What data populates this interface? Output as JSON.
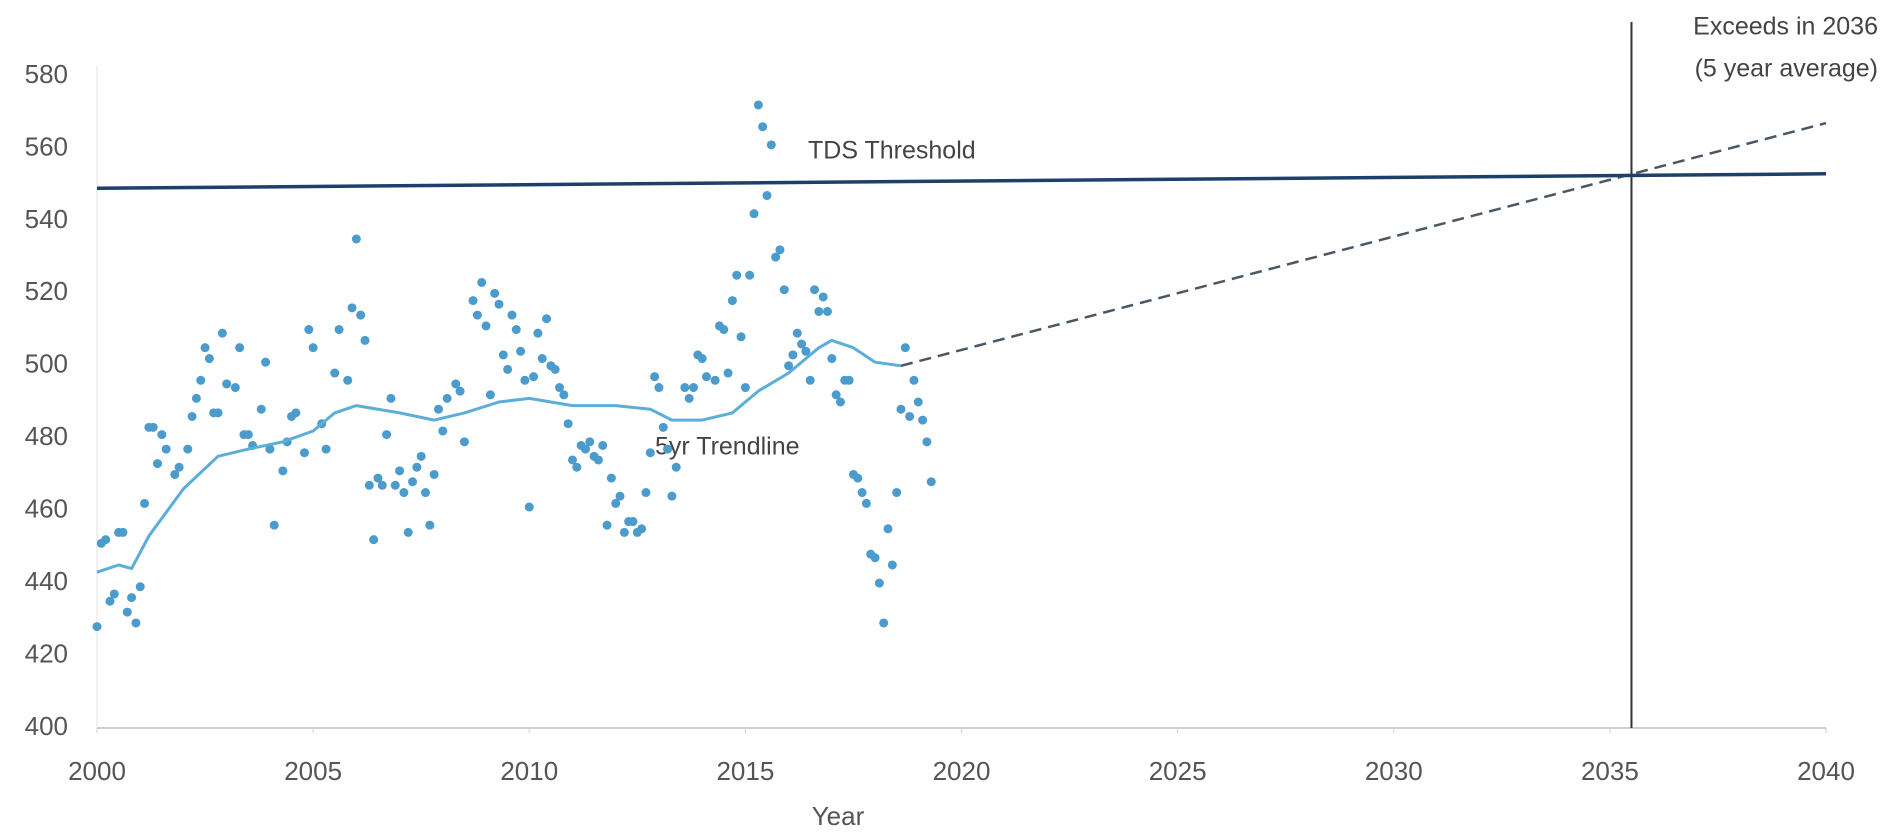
{
  "chart_data": {
    "type": "scatter",
    "x_label": "Year",
    "xlim": [
      2000,
      2040
    ],
    "xticks": [
      2000,
      2005,
      2010,
      2015,
      2020,
      2025,
      2030,
      2035,
      2040
    ],
    "ylim": [
      400,
      580
    ],
    "yticks": [
      400,
      420,
      440,
      460,
      480,
      500,
      520,
      540,
      560,
      580
    ],
    "grid": false,
    "vline_x": 2035.5,
    "annotations": [
      "TDS Threshold",
      "5yr Trendline",
      "Exceeds in 2036",
      "(5 year average)"
    ],
    "series": [
      {
        "type": "scatter",
        "color": "#4b9bcc",
        "x": [
          2000.0,
          2000.1,
          2000.2,
          2000.3,
          2000.4,
          2000.5,
          2000.6,
          2000.7,
          2000.8,
          2000.9,
          2001.0,
          2001.1,
          2001.2,
          2001.3,
          2001.4,
          2001.5,
          2001.6,
          2001.8,
          2001.9,
          2002.1,
          2002.2,
          2002.3,
          2002.4,
          2002.5,
          2002.6,
          2002.7,
          2002.8,
          2002.9,
          2003.0,
          2003.2,
          2003.3,
          2003.4,
          2003.5,
          2003.6,
          2003.8,
          2003.9,
          2004.0,
          2004.1,
          2004.3,
          2004.4,
          2004.5,
          2004.6,
          2004.8,
          2004.9,
          2005.0,
          2005.2,
          2005.3,
          2005.5,
          2005.6,
          2005.8,
          2005.9,
          2006.0,
          2006.1,
          2006.2,
          2006.3,
          2006.4,
          2006.5,
          2006.6,
          2006.7,
          2006.8,
          2006.9,
          2007.0,
          2007.1,
          2007.2,
          2007.3,
          2007.4,
          2007.5,
          2007.6,
          2007.7,
          2007.8,
          2007.9,
          2008.0,
          2008.1,
          2008.3,
          2008.4,
          2008.5,
          2008.7,
          2008.8,
          2008.9,
          2009.0,
          2009.1,
          2009.2,
          2009.3,
          2009.4,
          2009.5,
          2009.6,
          2009.7,
          2009.8,
          2009.9,
          2010.0,
          2010.1,
          2010.2,
          2010.3,
          2010.4,
          2010.5,
          2010.6,
          2010.7,
          2010.8,
          2010.9,
          2011.0,
          2011.1,
          2011.2,
          2011.3,
          2011.4,
          2011.5,
          2011.6,
          2011.7,
          2011.8,
          2011.9,
          2012.0,
          2012.1,
          2012.2,
          2012.3,
          2012.4,
          2012.5,
          2012.6,
          2012.7,
          2012.8,
          2012.9,
          2013.0,
          2013.1,
          2013.2,
          2013.3,
          2013.4,
          2013.6,
          2013.7,
          2013.8,
          2013.9,
          2014.0,
          2014.1,
          2014.3,
          2014.4,
          2014.5,
          2014.6,
          2014.7,
          2014.8,
          2014.9,
          2015.0,
          2015.1,
          2015.2,
          2015.3,
          2015.4,
          2015.5,
          2015.6,
          2015.7,
          2015.8,
          2015.9,
          2016.0,
          2016.1,
          2016.2,
          2016.3,
          2016.4,
          2016.5,
          2016.6,
          2016.7,
          2016.8,
          2016.9,
          2017.0,
          2017.1,
          2017.2,
          2017.3,
          2017.4,
          2017.5,
          2017.6,
          2017.7,
          2017.8,
          2017.9,
          2018.0,
          2018.1,
          2018.2,
          2018.3,
          2018.4,
          2018.5,
          2018.6,
          2018.7,
          2018.8,
          2018.9,
          2019.0,
          2019.1,
          2019.2,
          2019.3
        ],
        "values": [
          428,
          451,
          452,
          435,
          437,
          454,
          454,
          432,
          436,
          429,
          439,
          462,
          483,
          483,
          473,
          481,
          477,
          470,
          472,
          477,
          486,
          491,
          496,
          505,
          502,
          487,
          487,
          509,
          495,
          494,
          505,
          481,
          481,
          478,
          488,
          501,
          477,
          456,
          471,
          479,
          486,
          487,
          476,
          510,
          505,
          484,
          477,
          498,
          510,
          496,
          516,
          535,
          514,
          507,
          467,
          452,
          469,
          467,
          481,
          491,
          467,
          471,
          465,
          454,
          468,
          472,
          475,
          465,
          456,
          470,
          488,
          482,
          491,
          495,
          493,
          479,
          518,
          514,
          523,
          511,
          492,
          520,
          517,
          503,
          499,
          514,
          510,
          504,
          496,
          461,
          497,
          509,
          502,
          513,
          500,
          499,
          494,
          492,
          484,
          474,
          472,
          478,
          477,
          479,
          475,
          474,
          478,
          456,
          469,
          462,
          464,
          454,
          457,
          457,
          454,
          455,
          465,
          476,
          497,
          494,
          483,
          477,
          464,
          472,
          494,
          491,
          494,
          503,
          502,
          497,
          496,
          511,
          510,
          498,
          518,
          525,
          508,
          494,
          525,
          542,
          572,
          566,
          547,
          561,
          530,
          532,
          521,
          500,
          503,
          509,
          506,
          504,
          496,
          521,
          515,
          519,
          515,
          502,
          492,
          490,
          496,
          496,
          470,
          469,
          465,
          462,
          448,
          447,
          440,
          429,
          455,
          445,
          465,
          488,
          505,
          486,
          496,
          490,
          485,
          479,
          468
        ]
      },
      {
        "type": "line",
        "color": "#5aaed8",
        "width": 3,
        "x": [
          2000,
          2000.5,
          2000.8,
          2001.2,
          2002,
          2002.8,
          2003.5,
          2004.3,
          2005,
          2005.5,
          2006,
          2007,
          2007.8,
          2008.5,
          2009.3,
          2010,
          2010.5,
          2011,
          2012,
          2012.8,
          2013.3,
          2014,
          2014.7,
          2015.3,
          2016,
          2016.7,
          2017,
          2017.5,
          2018,
          2018.6
        ],
        "values": [
          443,
          445,
          444,
          453,
          466,
          475,
          477,
          479,
          482,
          487,
          489,
          487,
          485,
          487,
          490,
          491,
          490,
          489,
          489,
          488,
          485,
          485,
          487,
          493,
          498,
          505,
          507,
          505,
          501,
          500
        ]
      },
      {
        "type": "line",
        "color": "#4a5866",
        "width": 2.5,
        "dash": true,
        "x": [
          2018.6,
          2040
        ],
        "values": [
          500,
          567
        ]
      },
      {
        "type": "line",
        "color": "#1f3f6b",
        "width": 3.5,
        "x": [
          2000,
          2040
        ],
        "values": [
          549,
          553
        ]
      }
    ]
  }
}
